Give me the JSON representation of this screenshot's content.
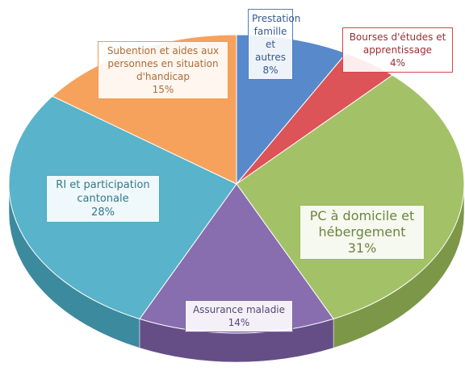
{
  "chart_data": {
    "type": "pie",
    "three_d": true,
    "categories": [
      "Prestation famille et autres",
      "Bourses d'études et apprentissage",
      "PC à domicile et hébergement",
      "Assurance maladie",
      "RI et participation cantonale",
      "Subention et aides aux personnes en situation d'handicap"
    ],
    "values": [
      8,
      4,
      31,
      14,
      28,
      15
    ],
    "value_labels": [
      "8%",
      "4%",
      "31%",
      "14%",
      "28%",
      "15%"
    ],
    "colors": [
      "#4a7fc6",
      "#d9444a",
      "#9bbd5a",
      "#7e62a8",
      "#4bacc6",
      "#f59a4e"
    ]
  }
}
